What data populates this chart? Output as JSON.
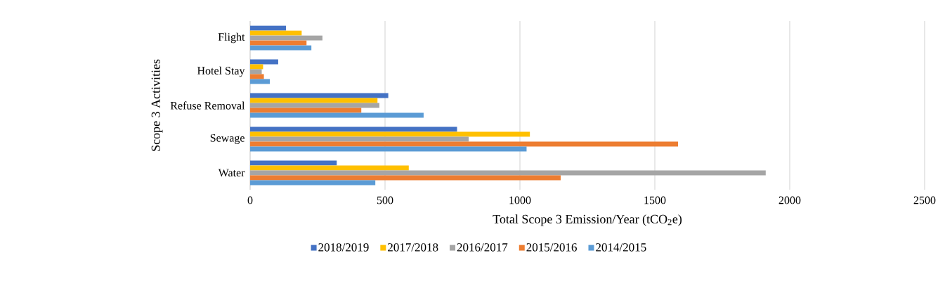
{
  "chart_data": {
    "type": "bar",
    "orientation": "horizontal",
    "ylabel": "Scope 3 Activities",
    "xlabel": "Total Scope 3 Emission/Year (tCO$_{2}$e)",
    "categories": [
      "Flight",
      "Hotel Stay",
      "Refuse Removal",
      "Sewage",
      "Water"
    ],
    "series": [
      {
        "name": "2018/2019",
        "color": "#4472c4",
        "values": [
          133,
          104,
          512,
          767,
          321
        ]
      },
      {
        "name": "2017/2018",
        "color": "#ffc000",
        "values": [
          191,
          48,
          472,
          1037,
          588
        ]
      },
      {
        "name": "2016/2017",
        "color": "#a5a5a5",
        "values": [
          268,
          43,
          479,
          810,
          1911
        ]
      },
      {
        "name": "2015/2016",
        "color": "#ed7d31",
        "values": [
          209,
          51,
          412,
          1586,
          1151
        ]
      },
      {
        "name": "2014/2015",
        "color": "#5b9bd5",
        "values": [
          227,
          73,
          643,
          1025,
          464
        ]
      }
    ],
    "xlim": [
      0,
      2500
    ],
    "xticks": [
      0,
      500,
      1000,
      1500,
      2000,
      2500
    ],
    "grid": "x",
    "legend": "bottom"
  }
}
